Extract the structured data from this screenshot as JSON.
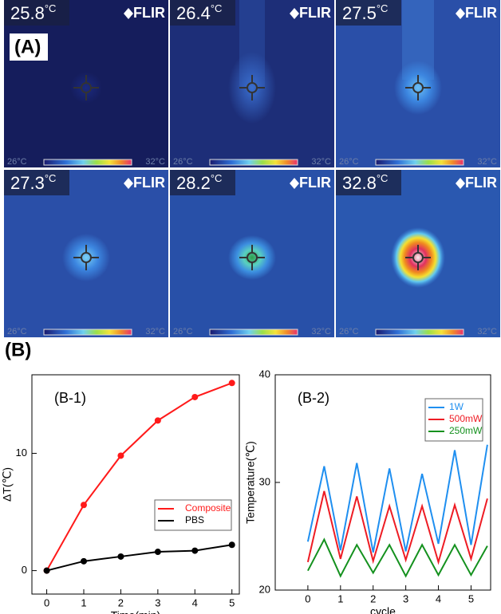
{
  "panel_a": {
    "label": "(A)",
    "images": [
      {
        "reading": "25.8",
        "unit": "°C",
        "brand": "FLIR",
        "scale_min": "26°C",
        "scale_max": "32°C"
      },
      {
        "reading": "26.4",
        "unit": "°C",
        "brand": "FLIR",
        "scale_min": "26°C",
        "scale_max": "32°C"
      },
      {
        "reading": "27.5",
        "unit": "°C",
        "brand": "FLIR",
        "scale_min": "26°C",
        "scale_max": "32°C"
      },
      {
        "reading": "27.3",
        "unit": "°C",
        "brand": "FLIR",
        "scale_min": "26°C",
        "scale_max": "32°C"
      },
      {
        "reading": "28.2",
        "unit": "°C",
        "brand": "FLIR",
        "scale_min": "26°C",
        "scale_max": "32°C"
      },
      {
        "reading": "32.8",
        "unit": "°C",
        "brand": "FLIR",
        "scale_min": "26°C",
        "scale_max": "32°C"
      }
    ]
  },
  "panel_b": {
    "label": "(B)"
  },
  "chart_data": [
    {
      "type": "line",
      "title": "(B-1)",
      "xlabel": "Time(min)",
      "ylabel": "ΔT(℃)",
      "x": [
        0,
        1,
        2,
        3,
        4,
        5
      ],
      "series": [
        {
          "name": "Composite",
          "color": "#ff1a1a",
          "marker": "circle",
          "values": [
            0,
            5.6,
            9.8,
            12.8,
            14.8,
            16
          ]
        },
        {
          "name": "PBS",
          "color": "#000000",
          "marker": "circle",
          "values": [
            0,
            0.8,
            1.2,
            1.6,
            1.7,
            2.2
          ]
        }
      ],
      "xlim": [
        -0.4,
        5.2
      ],
      "ylim": [
        -2,
        16.7
      ],
      "xticks": [
        0,
        1,
        2,
        3,
        4,
        5
      ],
      "yticks": [
        0,
        10
      ],
      "legend": "lower-right"
    },
    {
      "type": "line",
      "title": "(B-2)",
      "xlabel": "cycle",
      "ylabel": "Temperature(℃)",
      "x": [
        0,
        0.5,
        1,
        1.5,
        2,
        2.5,
        3,
        3.5,
        4,
        4.5,
        5,
        5.5
      ],
      "series": [
        {
          "name": "1W",
          "color": "#1f8ff0",
          "values": [
            24.5,
            31.5,
            23.7,
            31.8,
            23.5,
            31.3,
            23.6,
            30.8,
            24.3,
            33,
            24.2,
            33.5
          ]
        },
        {
          "name": "500mW",
          "color": "#ee1c24",
          "values": [
            22.6,
            29.2,
            22.9,
            28.7,
            22.7,
            27.8,
            22.8,
            27.8,
            22.6,
            27.9,
            22.9,
            28.5
          ]
        },
        {
          "name": "250mW",
          "color": "#14911e",
          "values": [
            21.8,
            24.7,
            21.3,
            24.2,
            21.6,
            24.2,
            21.3,
            24.2,
            21.4,
            24.2,
            21.4,
            24.1
          ]
        }
      ],
      "xlim": [
        -1,
        5.6
      ],
      "ylim": [
        20,
        40
      ],
      "xticks": [
        0,
        1,
        2,
        3,
        4,
        5
      ],
      "yticks": [
        20,
        30,
        40
      ],
      "legend": "upper-right"
    }
  ]
}
